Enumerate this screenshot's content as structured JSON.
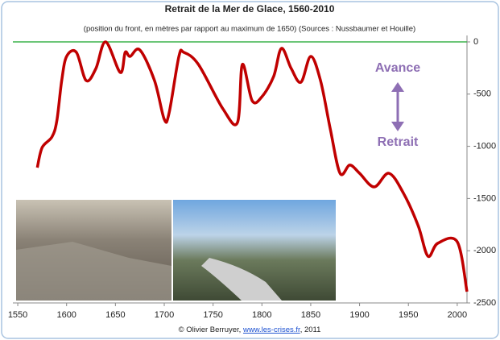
{
  "chart_data": {
    "type": "line",
    "title": "Retrait de la Mer de Glace, 1560-2010",
    "subtitle": "(position du front, en mètres par rapport au maximum de 1650) (Sources : Nussbaumer et Houille)",
    "x": [
      1570,
      1575,
      1585,
      1590,
      1595,
      1600,
      1610,
      1620,
      1630,
      1640,
      1655,
      1660,
      1665,
      1675,
      1690,
      1700,
      1705,
      1715,
      1720,
      1735,
      1760,
      1775,
      1780,
      1790,
      1800,
      1812,
      1820,
      1830,
      1840,
      1850,
      1860,
      1870,
      1880,
      1890,
      1900,
      1915,
      1930,
      1945,
      1960,
      1970,
      1980,
      2000,
      2010
    ],
    "series": [
      {
        "color": "#c00000",
        "values": [
          -1204,
          -1011,
          -910,
          -756,
          -370,
          -139,
          -100,
          -370,
          -255,
          0,
          -293,
          -100,
          -139,
          -77,
          -370,
          -741,
          -679,
          -139,
          -100,
          -216,
          -640,
          -772,
          -216,
          -563,
          -525,
          -332,
          -62,
          -255,
          -386,
          -139,
          -370,
          -833,
          -1258,
          -1180,
          -1258,
          -1389,
          -1258,
          -1450,
          -1760,
          -2052,
          -1929,
          -1914,
          -2392
        ]
      }
    ],
    "xlim": [
      1545,
      2010
    ],
    "xticks": [
      1550,
      1600,
      1650,
      1700,
      1750,
      1800,
      1850,
      1900,
      1950,
      2000
    ],
    "ylim": [
      -2500,
      0
    ],
    "yticks": [
      -2500,
      -2000,
      -1500,
      -1000,
      -500,
      0
    ],
    "zero_line_color": "#3cb44b",
    "annotations": [
      "Avance",
      "Retrait"
    ],
    "credit": [
      "© Olivier Berruyer, ",
      "www.les-crises.fr",
      ",  2011"
    ]
  }
}
